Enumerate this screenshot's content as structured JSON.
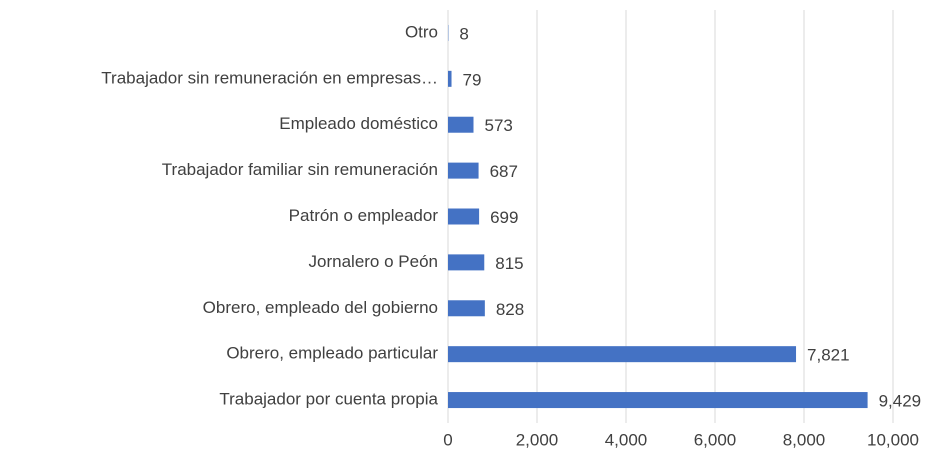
{
  "chart_data": {
    "type": "bar",
    "orientation": "horizontal",
    "categories": [
      "Otro",
      "Trabajador sin remuneración en empresas…",
      "Empleado doméstico",
      "Trabajador familiar sin remuneración",
      "Patrón o empleador",
      "Jornalero o Peón",
      "Obrero, empleado del gobierno",
      "Obrero, empleado particular",
      "Trabajador por cuenta propia"
    ],
    "values": [
      8,
      79,
      573,
      687,
      699,
      815,
      828,
      7821,
      9429
    ],
    "value_labels": [
      "8",
      "79",
      "573",
      "687",
      "699",
      "815",
      "828",
      "7,821",
      "9,429"
    ],
    "color": "#4472c4",
    "xlim": [
      0,
      10000
    ],
    "xticks": [
      0,
      {
        "value": 2000,
        "label": "2,000"
      },
      {
        "value": 4000,
        "label": "4,000"
      },
      {
        "value": 6000,
        "label": "6,000"
      },
      {
        "value": 8000,
        "label": "8,000"
      },
      {
        "value": 10000,
        "label": "10,000"
      }
    ],
    "grid": true
  }
}
